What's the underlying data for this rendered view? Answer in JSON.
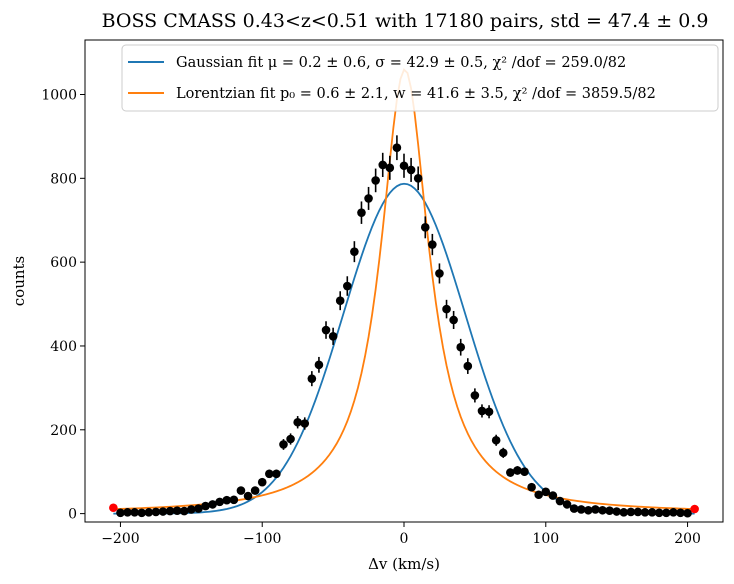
{
  "chart_data": {
    "type": "scatter",
    "title": "BOSS CMASS 0.43<z<0.51 with 17180 pairs, std = 47.4 ± 0.9",
    "xlabel": "Δv (km/s)",
    "ylabel": "counts",
    "xlim": [
      -225,
      225
    ],
    "ylim": [
      -20,
      1130
    ],
    "x_ticks": [
      -200,
      -100,
      0,
      100,
      200
    ],
    "x_tick_labels": [
      "−200",
      "−100",
      "0",
      "100",
      "200"
    ],
    "y_ticks": [
      0,
      200,
      400,
      600,
      800,
      1000
    ],
    "y_tick_labels": [
      "0",
      "200",
      "400",
      "600",
      "800",
      "1000"
    ],
    "grid": false,
    "legend_position": "top-right",
    "colors": {
      "gaussian": "#1f77b4",
      "lorentzian": "#ff7f0e",
      "data": "#000000",
      "excluded": "#ff0000"
    },
    "series": [
      {
        "name": "Gaussian fit μ = 0.2 ± 0.6, σ = 42.9 ± 0.5, χ² /dof = 259.0/82",
        "kind": "line",
        "color": "#1f77b4",
        "model": "gaussian",
        "params": {
          "amplitude": 787,
          "mu": 0.2,
          "sigma": 42.9
        }
      },
      {
        "name": "Lorentzian fit p₀ = 0.6 ± 2.1, w = 41.6 ± 3.5, χ² /dof = 3859.5/82",
        "kind": "line",
        "color": "#ff7f0e",
        "model": "lorentzian",
        "params": {
          "amplitude": 1060,
          "p0": 0.6,
          "w": 41.6
        }
      },
      {
        "kind": "errorbar",
        "color": "#000000",
        "x": [
          -200,
          -195,
          -190,
          -185,
          -180,
          -175,
          -170,
          -165,
          -160,
          -155,
          -150,
          -145,
          -140,
          -135,
          -130,
          -125,
          -120,
          -115,
          -110,
          -105,
          -100,
          -95,
          -90,
          -85,
          -80,
          -75,
          -70,
          -65,
          -60,
          -55,
          -50,
          -45,
          -40,
          -35,
          -30,
          -25,
          -20,
          -15,
          -10,
          -5,
          0,
          5,
          10,
          15,
          20,
          25,
          30,
          35,
          40,
          45,
          50,
          55,
          60,
          65,
          70,
          75,
          80,
          85,
          90,
          95,
          100,
          105,
          110,
          115,
          120,
          125,
          130,
          135,
          140,
          145,
          150,
          155,
          160,
          165,
          170,
          175,
          180,
          185,
          190,
          195,
          200
        ],
        "y": [
          2,
          3,
          3,
          2,
          3,
          4,
          5,
          6,
          7,
          6,
          10,
          12,
          18,
          22,
          28,
          32,
          33,
          55,
          42,
          55,
          75,
          95,
          95,
          165,
          178,
          218,
          215,
          322,
          355,
          438,
          423,
          508,
          543,
          625,
          718,
          752,
          795,
          832,
          825,
          873,
          830,
          820,
          800,
          683,
          642,
          573,
          488,
          462,
          397,
          352,
          282,
          245,
          243,
          175,
          145,
          98,
          103,
          100,
          63,
          45,
          52,
          43,
          30,
          22,
          12,
          10,
          8,
          10,
          8,
          7,
          5,
          3,
          4,
          4,
          3,
          3,
          2,
          2,
          3,
          2,
          1
        ]
      },
      {
        "kind": "points",
        "color": "#ff0000",
        "x": [
          -205,
          205
        ],
        "y": [
          14,
          11
        ]
      }
    ]
  }
}
